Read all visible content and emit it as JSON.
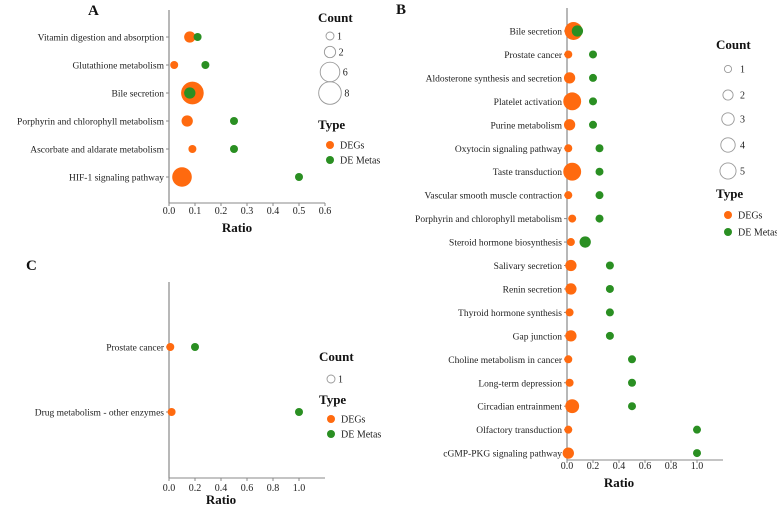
{
  "colors": {
    "DEGs": "#ff6a0f",
    "DE Metas": "#2a8f22",
    "axis": "#888888"
  },
  "chart_data": [
    {
      "panel": "A",
      "type": "scatter",
      "xlabel": "Ratio",
      "xlim": [
        0,
        0.6
      ],
      "xticks": [
        "0.0",
        "0.1",
        "0.2",
        "0.3",
        "0.4",
        "0.5",
        "0.6"
      ],
      "legend": {
        "count_title": "Count",
        "counts": [
          1,
          2,
          6,
          8
        ],
        "type_title": "Type",
        "types": [
          "DEGs",
          "DE Metas"
        ]
      },
      "categories": [
        "Vitamin digestion and absorption",
        "Glutathione metabolism",
        "Bile secretion",
        "Porphyrin and chlorophyll metabolism",
        "Ascorbate and aldarate metabolism",
        "HIF-1 signaling pathway"
      ],
      "series": [
        {
          "name": "DEGs",
          "x": [
            0.08,
            0.02,
            0.09,
            0.07,
            0.09,
            0.05
          ],
          "count": [
            2,
            1,
            8,
            2,
            1,
            6
          ]
        },
        {
          "name": "DE Metas",
          "x": [
            0.11,
            0.14,
            0.08,
            0.25,
            0.25,
            0.5
          ],
          "count": [
            1,
            1,
            2,
            1,
            1,
            1
          ]
        }
      ]
    },
    {
      "panel": "B",
      "type": "scatter",
      "xlabel": "Ratio",
      "xlim": [
        0,
        1.2
      ],
      "xticks": [
        "0.0",
        "0.2",
        "0.4",
        "0.6",
        "0.8",
        "1.0"
      ],
      "legend": {
        "count_title": "Count",
        "counts": [
          1,
          2,
          3,
          4,
          5
        ],
        "type_title": "Type",
        "types": [
          "DEGs",
          "DE Metas"
        ]
      },
      "categories": [
        "Bile secretion",
        "Prostate cancer",
        "Aldosterone synthesis and secretion",
        "Platelet activation",
        "Purine metabolism",
        "Oxytocin signaling pathway",
        "Taste transduction",
        "Vascular smooth muscle contraction",
        "Porphyrin and chlorophyll metabolism",
        "Steroid hormone biosynthesis",
        "Salivary secretion",
        "Renin secretion",
        "Thyroid hormone synthesis",
        "Gap junction",
        "Choline metabolism in cancer",
        "Long-term depression",
        "Circadian entrainment",
        "Olfactory transduction",
        "cGMP-PKG signaling pathway"
      ],
      "series": [
        {
          "name": "DEGs",
          "x": [
            0.05,
            0.01,
            0.02,
            0.04,
            0.02,
            0.01,
            0.04,
            0.01,
            0.04,
            0.03,
            0.03,
            0.03,
            0.02,
            0.03,
            0.01,
            0.02,
            0.04,
            0.01,
            0.01
          ],
          "count": [
            5,
            1,
            2,
            5,
            2,
            1,
            5,
            1,
            1,
            1,
            2,
            2,
            1,
            2,
            1,
            1,
            3,
            1,
            2
          ]
        },
        {
          "name": "DE Metas",
          "x": [
            0.08,
            0.2,
            0.2,
            0.2,
            0.2,
            0.25,
            0.25,
            0.25,
            0.25,
            0.14,
            0.33,
            0.33,
            0.33,
            0.33,
            0.5,
            0.5,
            0.5,
            1.0,
            1.0
          ],
          "count": [
            2,
            1,
            1,
            1,
            1,
            1,
            1,
            1,
            1,
            2,
            1,
            1,
            1,
            1,
            1,
            1,
            1,
            1,
            1
          ]
        }
      ]
    },
    {
      "panel": "C",
      "type": "scatter",
      "xlabel": "Ratio",
      "xlim": [
        0,
        1.2
      ],
      "xticks": [
        "0.0",
        "0.2",
        "0.4",
        "0.6",
        "0.8",
        "1.0"
      ],
      "legend": {
        "count_title": "Count",
        "counts": [
          1
        ],
        "type_title": "Type",
        "types": [
          "DEGs",
          "DE Metas"
        ]
      },
      "categories": [
        "Prostate cancer",
        "Drug metabolism - other enzymes"
      ],
      "series": [
        {
          "name": "DEGs",
          "x": [
            0.01,
            0.02
          ],
          "count": [
            1,
            1
          ]
        },
        {
          "name": "DE Metas",
          "x": [
            0.2,
            1.0
          ],
          "count": [
            1,
            1
          ]
        }
      ]
    }
  ]
}
